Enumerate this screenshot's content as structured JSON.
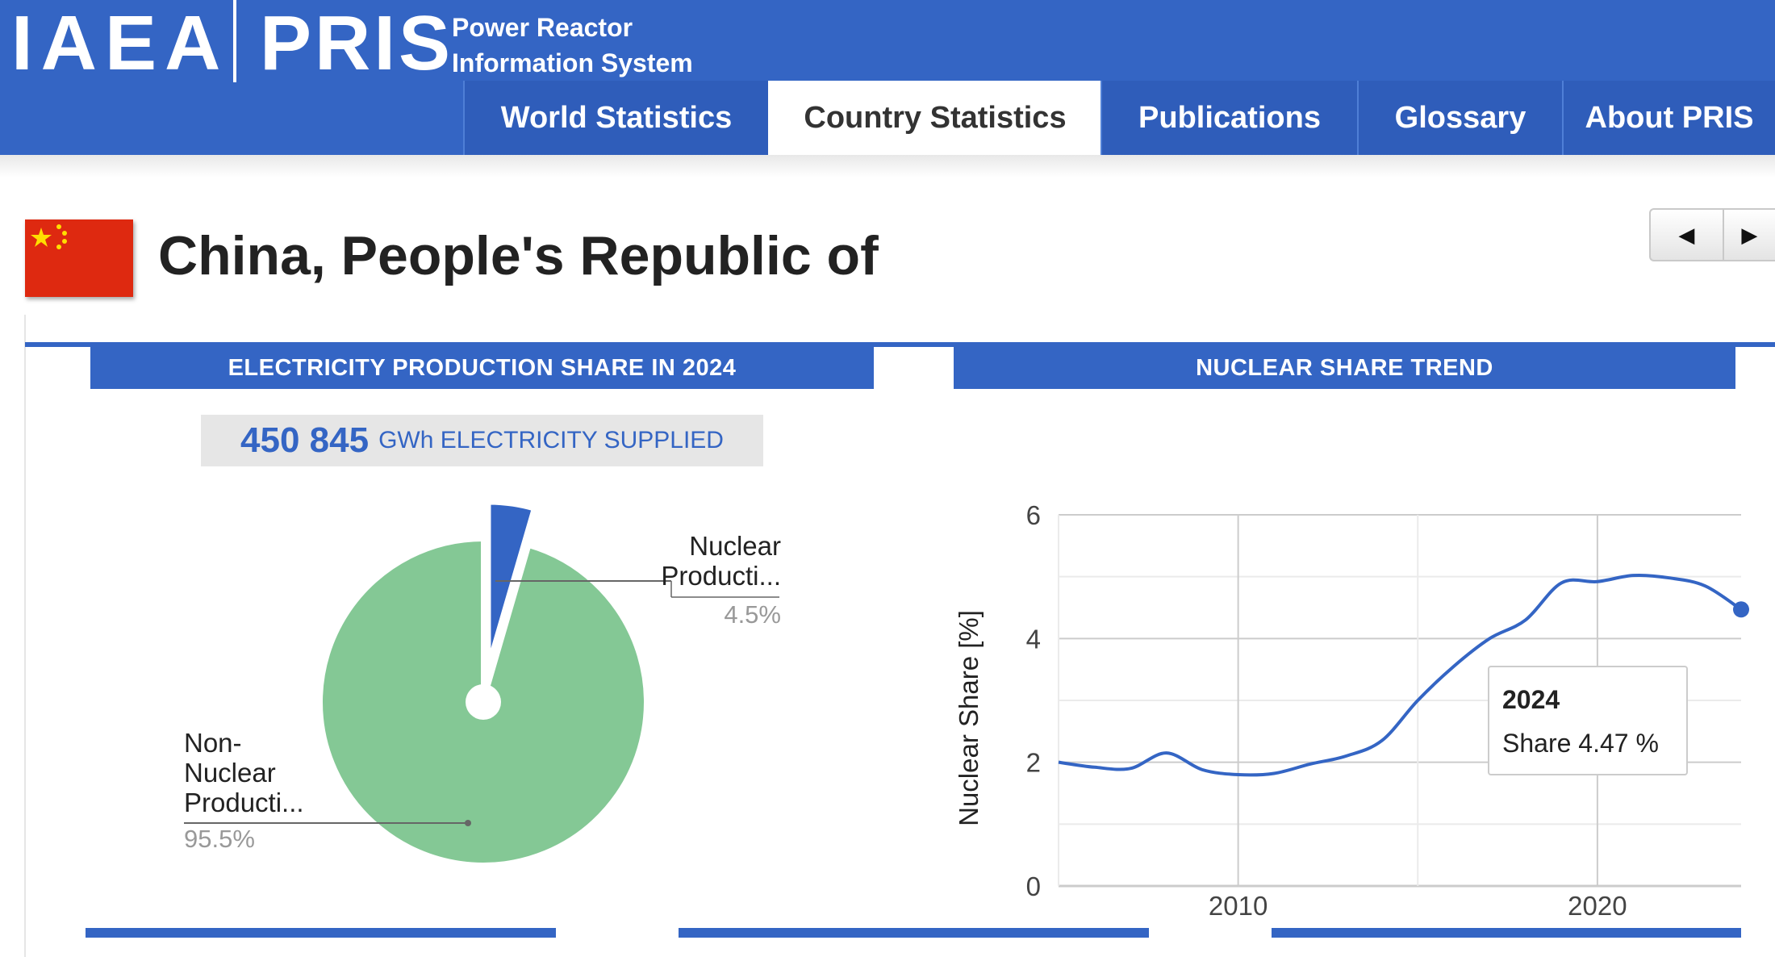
{
  "header": {
    "logo_left": "IAEA",
    "logo_right": "PRIS",
    "tagline_line1": "Power Reactor",
    "tagline_line2": "Information System",
    "tabs": [
      {
        "label": "World Statistics",
        "active": false
      },
      {
        "label": "Country Statistics",
        "active": true
      },
      {
        "label": "Publications",
        "active": false
      },
      {
        "label": "Glossary",
        "active": false
      },
      {
        "label": "About PRIS",
        "active": false
      }
    ],
    "brand_color": "#3465c4"
  },
  "country": {
    "name": "China, People's Republic of",
    "flag_icon": "china-flag-icon",
    "pager": {
      "prev_icon": "caret-left-icon",
      "next_icon": "caret-right-icon"
    }
  },
  "production_panel": {
    "title": "ELECTRICITY PRODUCTION SHARE IN 2024",
    "supplied_value": "450 845",
    "supplied_unit": "GWh ELECTRICITY SUPPLIED"
  },
  "trend_panel": {
    "title": "NUCLEAR SHARE TREND"
  },
  "chart_data": [
    {
      "type": "pie",
      "slices": [
        {
          "label_line1": "Nuclear",
          "label_line2": "Producti...",
          "value": 4.5,
          "value_label": "4.5%",
          "color": "#3465c4"
        },
        {
          "label_line1": "Non-",
          "label_line2": "Nuclear",
          "label_line3": "Producti...",
          "value": 95.5,
          "value_label": "95.5%",
          "color": "#84c895"
        }
      ]
    },
    {
      "type": "line",
      "ylabel": "Nuclear Share [%]",
      "xlabel": "",
      "xlim": [
        2005,
        2024
      ],
      "ylim": [
        0,
        6
      ],
      "y_ticks": [
        "0",
        "2",
        "4",
        "6"
      ],
      "x_ticks": [
        "2010",
        "2020"
      ],
      "grid": true,
      "line_color": "#3465c4",
      "x": [
        2005,
        2006,
        2007,
        2008,
        2009,
        2010,
        2011,
        2012,
        2013,
        2014,
        2015,
        2016,
        2017,
        2018,
        2019,
        2020,
        2021,
        2022,
        2023,
        2024
      ],
      "values": [
        2.0,
        1.92,
        1.9,
        2.15,
        1.88,
        1.8,
        1.82,
        1.97,
        2.1,
        2.35,
        3.0,
        3.55,
        4.0,
        4.3,
        4.9,
        4.92,
        5.02,
        4.98,
        4.85,
        4.47
      ],
      "tooltip": {
        "year": "2024",
        "text": "Share 4.47 %"
      }
    }
  ]
}
